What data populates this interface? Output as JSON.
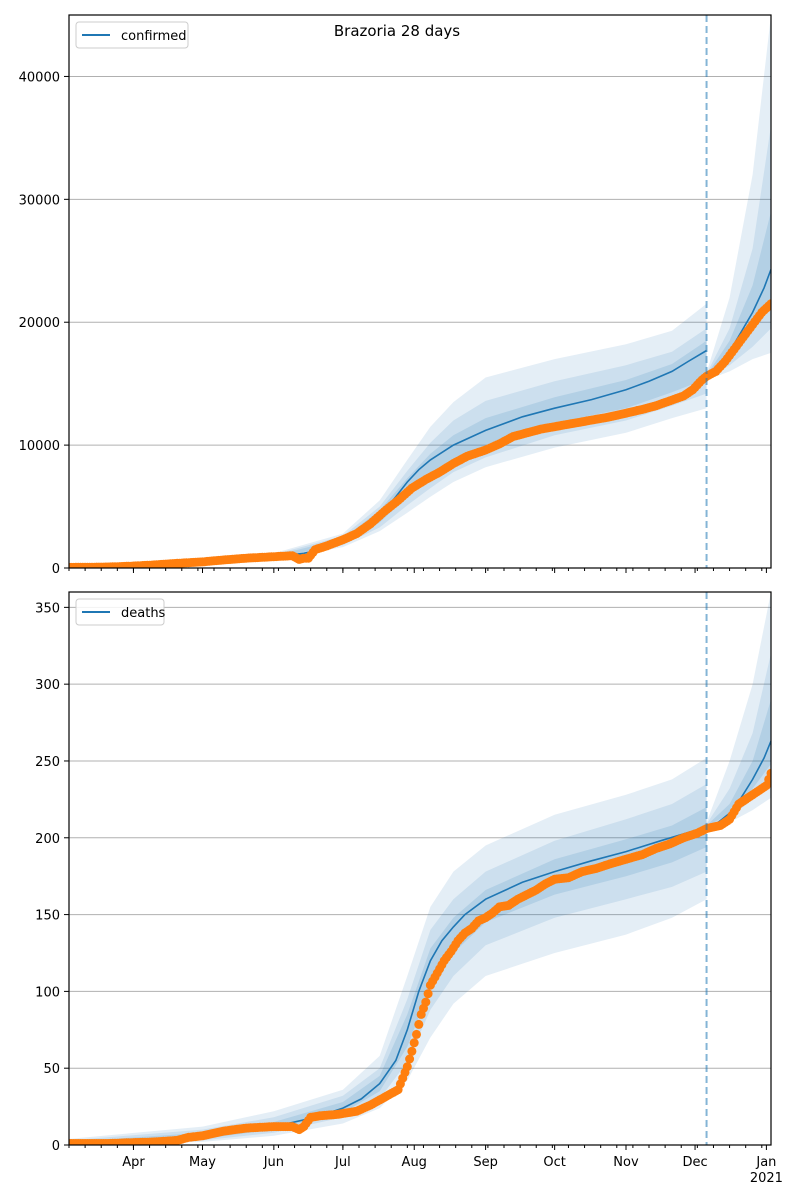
{
  "chart_data": [
    {
      "type": "line",
      "title": "Brazoria 28 days",
      "xlabel": "",
      "ylabel": "",
      "x_unit": "days since 2020-03-01",
      "xlim": [
        3,
        308
      ],
      "ylim": [
        0,
        45000
      ],
      "grid": "horizontal",
      "legend": {
        "position": "top-left",
        "entries": [
          {
            "label": "confirmed",
            "color": "#1f77b4"
          }
        ]
      },
      "yticks": [
        0,
        10000,
        20000,
        30000,
        40000
      ],
      "ytick_labels": [
        "0",
        "10000",
        "20000",
        "30000",
        "40000"
      ],
      "xticks": [
        31,
        61,
        92,
        122,
        153,
        184,
        214,
        245,
        275,
        306
      ],
      "xtick_labels": [
        "Apr",
        "May",
        "Jun",
        "Jul",
        "Aug",
        "Sep",
        "Oct",
        "Nov",
        "Dec",
        "Jan\n2021"
      ],
      "forecast_start_x": 280,
      "series": [
        {
          "name": "confirmed",
          "kind": "model-median",
          "color": "#1f77b4",
          "x": [
            3,
            20,
            40,
            61,
            80,
            92,
            105,
            115,
            122,
            130,
            138,
            145,
            150,
            155,
            160,
            170,
            184,
            200,
            214,
            230,
            245,
            255,
            265,
            272,
            280
          ],
          "y": [
            50,
            100,
            200,
            450,
            700,
            900,
            1200,
            1600,
            2200,
            3000,
            4200,
            5800,
            7000,
            8000,
            8800,
            10000,
            11200,
            12300,
            13000,
            13700,
            14500,
            15200,
            16000,
            16800,
            17700
          ]
        },
        {
          "name": "confirmed-forecast",
          "kind": "model-median",
          "color": "#1f77b4",
          "x": [
            280,
            285,
            290,
            295,
            300,
            305,
            308
          ],
          "y": [
            15600,
            16300,
            17600,
            19200,
            20800,
            22800,
            24300
          ]
        },
        {
          "name": "confirmed-observed",
          "kind": "observed-points",
          "color": "#ff7f0e",
          "x": [
            3,
            10,
            20,
            30,
            40,
            50,
            61,
            70,
            80,
            90,
            100,
            103,
            105,
            107,
            110,
            115,
            122,
            128,
            134,
            140,
            146,
            152,
            158,
            164,
            170,
            176,
            184,
            190,
            196,
            202,
            208,
            214,
            220,
            226,
            232,
            238,
            245,
            252,
            258,
            264,
            270,
            274,
            278,
            280,
            284,
            288,
            292,
            296,
            300,
            304,
            308
          ],
          "y": [
            50,
            60,
            80,
            150,
            250,
            380,
            500,
            650,
            800,
            900,
            1000,
            700,
            800,
            800,
            1500,
            1800,
            2300,
            2800,
            3600,
            4600,
            5500,
            6500,
            7200,
            7800,
            8500,
            9100,
            9600,
            10100,
            10700,
            11000,
            11300,
            11500,
            11700,
            11900,
            12100,
            12300,
            12600,
            12900,
            13200,
            13600,
            14000,
            14500,
            15300,
            15600,
            16000,
            16800,
            17800,
            18800,
            19800,
            20800,
            21500
          ]
        }
      ],
      "bands": [
        {
          "name": "outer-band",
          "opacity": 0.12,
          "x": [
            3,
            61,
            92,
            122,
            138,
            150,
            160,
            170,
            184,
            214,
            245,
            265,
            280
          ],
          "lower": [
            0,
            300,
            700,
            1700,
            3000,
            4500,
            5800,
            7000,
            8200,
            9800,
            11000,
            12200,
            13000
          ],
          "upper": [
            200,
            700,
            1200,
            2800,
            5500,
            8800,
            11500,
            13500,
            15500,
            17000,
            18200,
            19300,
            21500
          ]
        },
        {
          "name": "outer-band-forecast",
          "opacity": 0.12,
          "x": [
            280,
            290,
            300,
            308
          ],
          "lower": [
            15300,
            16000,
            17000,
            17500
          ],
          "upper": [
            15900,
            22000,
            32000,
            45000
          ]
        },
        {
          "name": "middle-band",
          "opacity": 0.12,
          "x": [
            3,
            61,
            92,
            122,
            138,
            150,
            160,
            170,
            184,
            214,
            245,
            265,
            280
          ],
          "lower": [
            10,
            350,
            750,
            1850,
            3300,
            5100,
            6500,
            7800,
            9000,
            10800,
            12000,
            13200,
            14200
          ],
          "upper": [
            150,
            600,
            1100,
            2600,
            5000,
            7900,
            10200,
            12000,
            13600,
            15200,
            16500,
            17600,
            19500
          ]
        },
        {
          "name": "middle-band-forecast",
          "opacity": 0.12,
          "x": [
            280,
            290,
            300,
            308
          ],
          "lower": [
            15400,
            16500,
            18000,
            19500
          ],
          "upper": [
            15800,
            19500,
            26000,
            36000
          ]
        },
        {
          "name": "inner-band",
          "opacity": 0.14,
          "x": [
            3,
            61,
            92,
            122,
            138,
            150,
            160,
            170,
            184,
            214,
            245,
            265,
            280
          ],
          "lower": [
            20,
            400,
            800,
            2000,
            3700,
            5800,
            7300,
            8700,
            10000,
            11800,
            13000,
            14300,
            15400
          ],
          "upper": [
            100,
            520,
            1000,
            2400,
            4700,
            7300,
            9300,
            10800,
            12200,
            13900,
            15300,
            16600,
            18500
          ]
        },
        {
          "name": "inner-band-forecast",
          "opacity": 0.14,
          "x": [
            280,
            290,
            300,
            308
          ],
          "lower": [
            15500,
            17000,
            19500,
            21500
          ],
          "upper": [
            15700,
            18500,
            23000,
            29000
          ]
        }
      ]
    },
    {
      "type": "line",
      "title": "",
      "xlabel": "",
      "ylabel": "",
      "x_unit": "days since 2020-03-01",
      "xlim": [
        3,
        308
      ],
      "ylim": [
        0,
        360
      ],
      "grid": "horizontal",
      "legend": {
        "position": "top-left",
        "entries": [
          {
            "label": "deaths",
            "color": "#1f77b4"
          }
        ]
      },
      "yticks": [
        0,
        50,
        100,
        150,
        200,
        250,
        300,
        350
      ],
      "ytick_labels": [
        "0",
        "50",
        "100",
        "150",
        "200",
        "250",
        "300",
        "350"
      ],
      "xticks": [
        31,
        61,
        92,
        122,
        153,
        184,
        214,
        245,
        275,
        306
      ],
      "xtick_labels": [
        "Apr",
        "May",
        "Jun",
        "Jul",
        "Aug",
        "Sep",
        "Oct",
        "Nov",
        "Dec",
        "Jan\n2021"
      ],
      "forecast_start_x": 280,
      "series": [
        {
          "name": "deaths",
          "kind": "model-median",
          "color": "#1f77b4",
          "x": [
            3,
            31,
            61,
            92,
            110,
            122,
            130,
            138,
            145,
            150,
            155,
            160,
            165,
            170,
            175,
            184,
            200,
            214,
            230,
            245,
            260,
            280
          ],
          "y": [
            1,
            2,
            6,
            12,
            18,
            24,
            30,
            40,
            55,
            75,
            100,
            120,
            133,
            142,
            150,
            160,
            171,
            178,
            185,
            191,
            198,
            207
          ]
        },
        {
          "name": "deaths-forecast",
          "kind": "model-median",
          "color": "#1f77b4",
          "x": [
            280,
            285,
            290,
            295,
            300,
            305,
            308
          ],
          "y": [
            207,
            210,
            216,
            226,
            238,
            252,
            263
          ]
        },
        {
          "name": "deaths-observed",
          "kind": "observed-points",
          "color": "#ff7f0e",
          "x": [
            3,
            20,
            40,
            50,
            55,
            61,
            70,
            80,
            92,
            100,
            103,
            105,
            108,
            112,
            120,
            128,
            134,
            140,
            146,
            150,
            152,
            154,
            156,
            158,
            160,
            163,
            166,
            169,
            172,
            175,
            178,
            181,
            184,
            187,
            190,
            194,
            198,
            202,
            206,
            210,
            214,
            220,
            226,
            232,
            238,
            245,
            252,
            258,
            264,
            270,
            276,
            280,
            286,
            290,
            294,
            298,
            302,
            306,
            308
          ],
          "y": [
            1,
            1,
            2,
            3,
            5,
            6,
            9,
            11,
            12,
            12,
            10,
            12,
            18,
            19,
            20,
            22,
            26,
            31,
            36,
            51,
            61,
            72,
            85,
            93,
            104,
            112,
            120,
            126,
            133,
            138,
            141,
            146,
            148,
            151,
            155,
            156,
            160,
            163,
            166,
            170,
            173,
            174,
            178,
            180,
            183,
            186,
            189,
            193,
            196,
            200,
            203,
            206,
            208,
            212,
            222,
            226,
            230,
            234,
            242
          ]
        }
      ],
      "bands": [
        {
          "name": "outer-band",
          "opacity": 0.12,
          "x": [
            3,
            61,
            92,
            122,
            138,
            150,
            160,
            170,
            184,
            214,
            245,
            265,
            280
          ],
          "lower": [
            0,
            2,
            6,
            14,
            24,
            42,
            70,
            92,
            110,
            125,
            137,
            148,
            160
          ],
          "upper": [
            4,
            12,
            22,
            36,
            58,
            110,
            155,
            178,
            195,
            215,
            228,
            238,
            252
          ]
        },
        {
          "name": "outer-band-forecast",
          "opacity": 0.12,
          "x": [
            280,
            290,
            300,
            308
          ],
          "lower": [
            205,
            210,
            218,
            226
          ],
          "upper": [
            210,
            250,
            300,
            360
          ]
        },
        {
          "name": "middle-band",
          "opacity": 0.12,
          "x": [
            3,
            61,
            92,
            122,
            138,
            150,
            160,
            170,
            184,
            214,
            245,
            265,
            280
          ],
          "lower": [
            0,
            3,
            8,
            18,
            30,
            54,
            88,
            110,
            130,
            148,
            160,
            168,
            178
          ],
          "upper": [
            3,
            10,
            18,
            32,
            50,
            95,
            140,
            160,
            178,
            198,
            212,
            222,
            235
          ]
        },
        {
          "name": "middle-band-forecast",
          "opacity": 0.12,
          "x": [
            280,
            290,
            300,
            308
          ],
          "lower": [
            206,
            213,
            225,
            238
          ],
          "upper": [
            209,
            232,
            268,
            320
          ]
        },
        {
          "name": "inner-band",
          "opacity": 0.14,
          "x": [
            3,
            61,
            92,
            122,
            138,
            150,
            160,
            170,
            184,
            214,
            245,
            265,
            280
          ],
          "lower": [
            0,
            4,
            10,
            21,
            35,
            64,
            103,
            125,
            145,
            163,
            175,
            184,
            194
          ],
          "upper": [
            2,
            8,
            15,
            28,
            45,
            85,
            128,
            148,
            166,
            186,
            199,
            208,
            220
          ]
        },
        {
          "name": "inner-band-forecast",
          "opacity": 0.14,
          "x": [
            280,
            290,
            300,
            308
          ],
          "lower": [
            207,
            216,
            232,
            248
          ],
          "upper": [
            208,
            222,
            250,
            290
          ]
        }
      ]
    }
  ]
}
